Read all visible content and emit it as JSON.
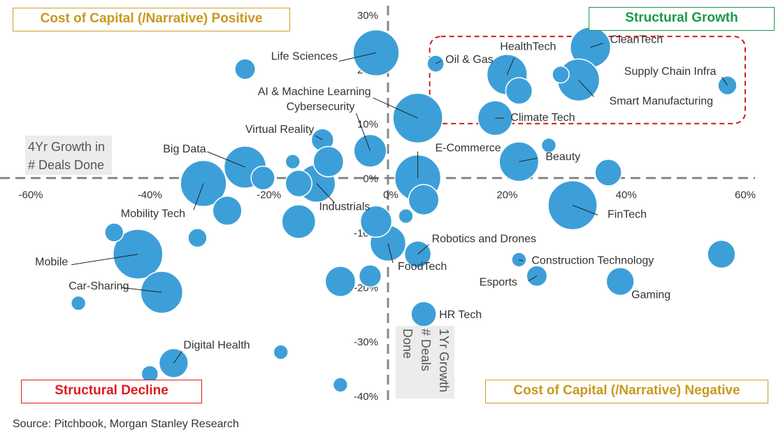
{
  "quadrants": {
    "top_left": "Cost of Capital (/Narrative) Positive",
    "top_right": "Structural Growth",
    "bottom_left": "Structural Decline",
    "bottom_right": "Cost of Capital (/Narrative) Negative"
  },
  "source": "Source: Pitchbook, Morgan Stanley Research",
  "colors": {
    "bubble": "#3d9fd8",
    "axis": "#888888",
    "highlight_box": "#d01a1a"
  },
  "chart_data": {
    "type": "scatter",
    "xlabel": "1Yr Growth # Deals Done",
    "ylabel": "4Yr Growth in # Deals Done",
    "xlim": [
      -60,
      60
    ],
    "ylim": [
      -40,
      30
    ],
    "x_ticks": [
      -60,
      -40,
      -20,
      0,
      20,
      40,
      60
    ],
    "y_ticks": [
      30,
      20,
      10,
      0,
      -10,
      -20,
      -30,
      -40
    ],
    "x_tick_labels": [
      "-60%",
      "-40%",
      "-20%",
      "0%",
      "20%",
      "40%",
      "60%"
    ],
    "y_tick_labels": [
      "30%",
      "20%",
      "10%",
      "0%",
      "-10%",
      "-20%",
      "-30%",
      "-40%"
    ],
    "highlight": {
      "x_range": [
        7,
        60
      ],
      "y_range": [
        10,
        26
      ]
    },
    "points": [
      {
        "x": -2,
        "y": 23,
        "size": 3,
        "label": "Life Sciences"
      },
      {
        "x": 5,
        "y": 11,
        "size": 3.5,
        "label": "AI & Machine Learning"
      },
      {
        "x": -3,
        "y": 5,
        "size": 1.5,
        "label": "Cybersecurity"
      },
      {
        "x": -11,
        "y": 7,
        "size": 0.7,
        "label": "Virtual Reality"
      },
      {
        "x": -24,
        "y": 2,
        "size": 2.5,
        "label": "Big Data"
      },
      {
        "x": -31,
        "y": -1,
        "size": 3,
        "label": "Mobility Tech"
      },
      {
        "x": -12,
        "y": -1,
        "size": 2,
        "label": "Industrials"
      },
      {
        "x": -42,
        "y": -14,
        "size": 3.5,
        "label": "Mobile"
      },
      {
        "x": -38,
        "y": -21,
        "size": 2.5,
        "label": "Car-Sharing"
      },
      {
        "x": -36,
        "y": -34,
        "size": 1.2,
        "label": "Digital Health"
      },
      {
        "x": 0,
        "y": -12,
        "size": 1.8,
        "label": "FoodTech"
      },
      {
        "x": 5,
        "y": -14,
        "size": 1.0,
        "label": "Robotics and Drones"
      },
      {
        "x": 6,
        "y": -25,
        "size": 0.9,
        "label": "HR Tech"
      },
      {
        "x": 5,
        "y": 0,
        "size": 3,
        "label": "E-Commerce"
      },
      {
        "x": 8,
        "y": 21,
        "size": 0.4,
        "label": "Oil & Gas"
      },
      {
        "x": 20,
        "y": 19,
        "size": 2.3,
        "label": "HealthTech"
      },
      {
        "x": 34,
        "y": 24,
        "size": 2.3,
        "label": "CleanTech"
      },
      {
        "x": 57,
        "y": 17,
        "size": 0.5,
        "label": "Supply Chain Infra"
      },
      {
        "x": 32,
        "y": 18,
        "size": 2.5,
        "label": "Smart Manufacturing"
      },
      {
        "x": 18,
        "y": 11,
        "size": 1.7,
        "label": "Climate Tech"
      },
      {
        "x": 22,
        "y": 3,
        "size": 2.2,
        "label": "Beauty"
      },
      {
        "x": 31,
        "y": -5,
        "size": 3.4,
        "label": "FinTech"
      },
      {
        "x": 22,
        "y": -15,
        "size": 0.3,
        "label": "Construction Technology"
      },
      {
        "x": 25,
        "y": -18,
        "size": 0.6,
        "label": "Esports"
      },
      {
        "x": 39,
        "y": -19,
        "size": 1.1,
        "label": "Gaming"
      },
      {
        "x": -21,
        "y": 0,
        "size": 0.8,
        "label": ""
      },
      {
        "x": -24,
        "y": 20,
        "size": 0.6,
        "label": ""
      },
      {
        "x": 22,
        "y": 16,
        "size": 1.0,
        "label": ""
      },
      {
        "x": 29,
        "y": 19,
        "size": 0.4,
        "label": ""
      },
      {
        "x": 27,
        "y": 6,
        "size": 0.3,
        "label": ""
      },
      {
        "x": 37,
        "y": 1,
        "size": 1.0,
        "label": ""
      },
      {
        "x": 56,
        "y": -14,
        "size": 1.1,
        "label": ""
      },
      {
        "x": -10,
        "y": 3,
        "size": 1.3,
        "label": ""
      },
      {
        "x": -16,
        "y": 3,
        "size": 0.3,
        "label": ""
      },
      {
        "x": -15,
        "y": -1,
        "size": 1.0,
        "label": ""
      },
      {
        "x": -27,
        "y": -6,
        "size": 1.2,
        "label": ""
      },
      {
        "x": -46,
        "y": -10,
        "size": 0.5,
        "label": ""
      },
      {
        "x": -32,
        "y": -11,
        "size": 0.5,
        "label": ""
      },
      {
        "x": -15,
        "y": -8,
        "size": 1.6,
        "label": ""
      },
      {
        "x": -2,
        "y": -8,
        "size": 1.4,
        "label": ""
      },
      {
        "x": 3,
        "y": -7,
        "size": 0.3,
        "label": ""
      },
      {
        "x": 6,
        "y": -4,
        "size": 1.3,
        "label": ""
      },
      {
        "x": -8,
        "y": -19,
        "size": 1.3,
        "label": ""
      },
      {
        "x": -3,
        "y": -18,
        "size": 0.7,
        "label": ""
      },
      {
        "x": -52,
        "y": -23,
        "size": 0.3,
        "label": ""
      },
      {
        "x": -18,
        "y": -32,
        "size": 0.3,
        "label": ""
      },
      {
        "x": -40,
        "y": -36,
        "size": 0.4,
        "label": ""
      },
      {
        "x": -8,
        "y": -38,
        "size": 0.3,
        "label": ""
      }
    ]
  }
}
